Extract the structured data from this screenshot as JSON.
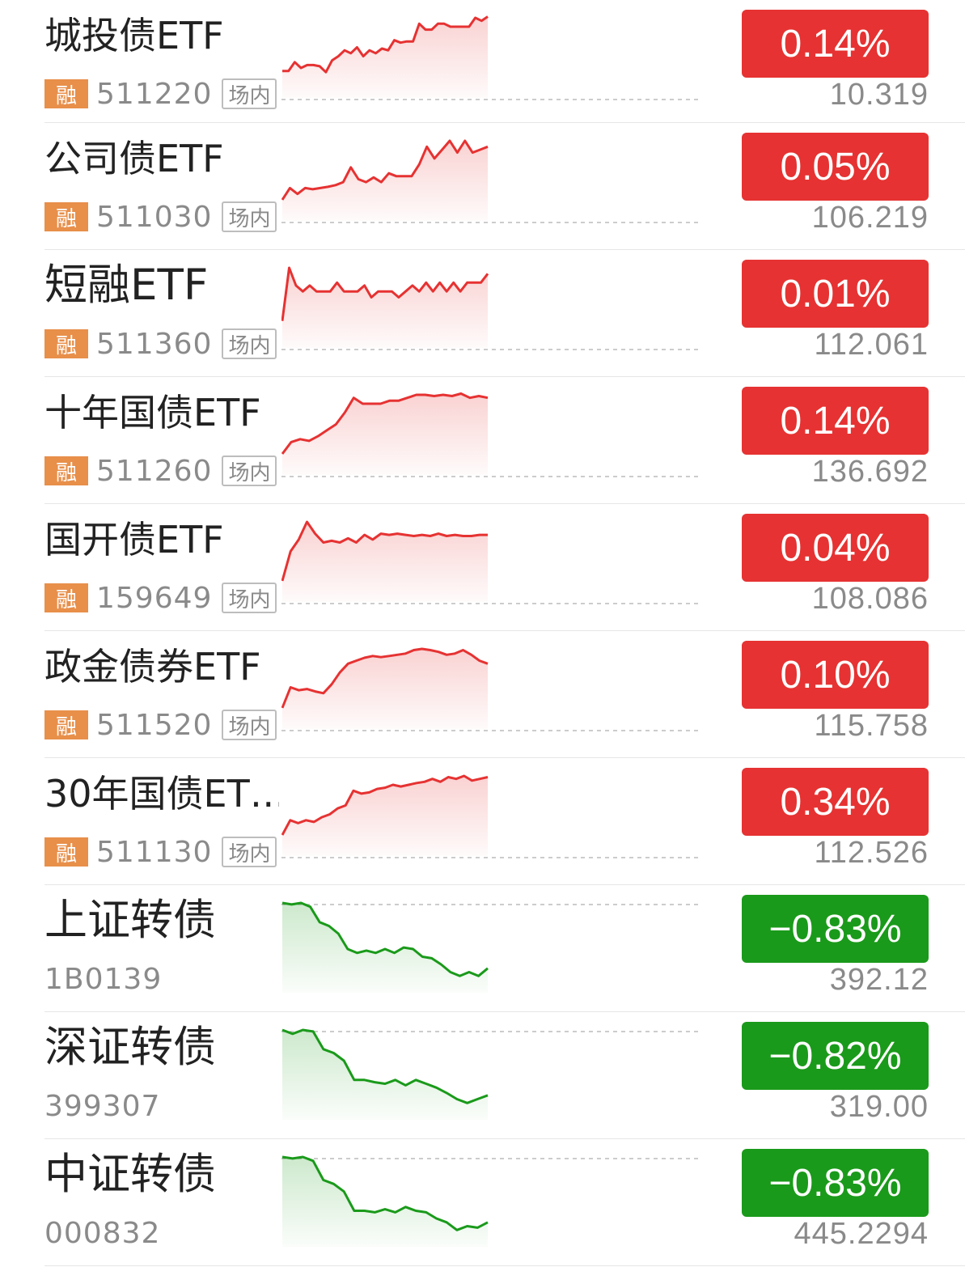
{
  "colors": {
    "up": "#e63232",
    "down": "#1a9a1a",
    "rong_badge": "#e88f4a",
    "secondary_text": "#8a8a8a"
  },
  "rows": [
    {
      "name": "城投债ETF",
      "tag": "融",
      "code": "511220",
      "market": "场内",
      "change": "0.14%",
      "price": "10.319",
      "trend": "up",
      "spark": [
        0.1,
        0.1,
        0.25,
        0.15,
        0.2,
        0.2,
        0.18,
        0.08,
        0.28,
        0.35,
        0.45,
        0.4,
        0.5,
        0.35,
        0.45,
        0.4,
        0.48,
        0.45,
        0.62,
        0.58,
        0.6,
        0.6,
        0.9,
        0.8,
        0.8,
        0.9,
        0.9,
        0.85,
        0.85,
        0.85,
        0.85,
        1.0,
        0.95,
        1.02
      ]
    },
    {
      "name": "公司债ETF",
      "tag": "融",
      "code": "511030",
      "market": "场内",
      "change": "0.05%",
      "price": "106.219",
      "trend": "up",
      "spark": [
        0.0,
        0.2,
        0.1,
        0.2,
        0.18,
        0.2,
        0.22,
        0.25,
        0.3,
        0.55,
        0.35,
        0.3,
        0.38,
        0.3,
        0.45,
        0.4,
        0.4,
        0.4,
        0.6,
        0.9,
        0.7,
        0.85,
        1.0,
        0.8,
        1.0,
        0.8,
        0.85,
        0.9
      ]
    },
    {
      "name": "短融ETF",
      "tag": "融",
      "code": "511360",
      "market": "场内",
      "change": "0.01%",
      "price": "112.061",
      "trend": "up",
      "spark": [
        0.1,
        1.0,
        0.7,
        0.6,
        0.7,
        0.6,
        0.6,
        0.6,
        0.75,
        0.6,
        0.6,
        0.6,
        0.7,
        0.5,
        0.6,
        0.6,
        0.6,
        0.5,
        0.6,
        0.7,
        0.6,
        0.75,
        0.6,
        0.75,
        0.6,
        0.75,
        0.6,
        0.75,
        0.75,
        0.75,
        0.9
      ]
    },
    {
      "name": "十年国债ETF",
      "tag": "融",
      "code": "511260",
      "market": "场内",
      "change": "0.14%",
      "price": "136.692",
      "trend": "up",
      "spark": [
        0.0,
        0.2,
        0.25,
        0.22,
        0.3,
        0.4,
        0.5,
        0.7,
        0.95,
        0.85,
        0.85,
        0.85,
        0.9,
        0.9,
        0.95,
        1.0,
        1.0,
        0.98,
        1.0,
        0.98,
        1.02,
        0.95,
        0.98,
        0.95
      ]
    },
    {
      "name": "国开债ETF",
      "tag": "融",
      "code": "159649",
      "market": "场内",
      "change": "0.04%",
      "price": "108.086",
      "trend": "up",
      "spark": [
        0.0,
        0.5,
        0.7,
        1.0,
        0.8,
        0.65,
        0.68,
        0.65,
        0.72,
        0.65,
        0.78,
        0.7,
        0.8,
        0.78,
        0.8,
        0.78,
        0.76,
        0.78,
        0.76,
        0.8,
        0.76,
        0.78,
        0.76,
        0.76,
        0.78,
        0.78
      ]
    },
    {
      "name": "政金债券ETF",
      "tag": "融",
      "code": "511520",
      "market": "场内",
      "change": "0.10%",
      "price": "115.758",
      "trend": "up",
      "spark": [
        0.0,
        0.35,
        0.3,
        0.32,
        0.28,
        0.25,
        0.4,
        0.6,
        0.75,
        0.8,
        0.85,
        0.88,
        0.86,
        0.88,
        0.9,
        0.92,
        0.98,
        1.0,
        0.98,
        0.95,
        0.9,
        0.92,
        0.98,
        0.9,
        0.8,
        0.75
      ]
    },
    {
      "name": "30年国债ET…",
      "tag": "融",
      "code": "511130",
      "market": "场内",
      "change": "0.34%",
      "price": "112.526",
      "trend": "up",
      "spark": [
        0.0,
        0.25,
        0.2,
        0.25,
        0.22,
        0.3,
        0.35,
        0.45,
        0.5,
        0.75,
        0.7,
        0.72,
        0.78,
        0.8,
        0.85,
        0.82,
        0.85,
        0.88,
        0.9,
        0.95,
        0.9,
        0.98,
        0.95,
        1.0,
        0.92,
        0.95,
        0.98
      ]
    },
    {
      "name": "上证转债",
      "tag": "",
      "code": "1B0139",
      "market": "",
      "change": "−0.83%",
      "price": "392.12",
      "trend": "down",
      "spark": [
        1.0,
        0.98,
        1.0,
        0.95,
        0.75,
        0.7,
        0.6,
        0.4,
        0.35,
        0.38,
        0.35,
        0.4,
        0.35,
        0.42,
        0.4,
        0.3,
        0.28,
        0.2,
        0.1,
        0.05,
        0.1,
        0.05,
        0.15
      ]
    },
    {
      "name": "深证转债",
      "tag": "",
      "code": "399307",
      "market": "",
      "change": "−0.82%",
      "price": "319.00",
      "trend": "down",
      "spark": [
        1.0,
        0.95,
        1.0,
        0.98,
        0.75,
        0.7,
        0.6,
        0.35,
        0.35,
        0.32,
        0.3,
        0.35,
        0.28,
        0.35,
        0.3,
        0.25,
        0.18,
        0.1,
        0.05,
        0.1,
        0.15
      ]
    },
    {
      "name": "中证转债",
      "tag": "",
      "code": "000832",
      "market": "",
      "change": "−0.83%",
      "price": "445.2294",
      "trend": "down",
      "spark": [
        1.0,
        0.98,
        1.0,
        0.95,
        0.7,
        0.65,
        0.55,
        0.3,
        0.3,
        0.28,
        0.32,
        0.28,
        0.35,
        0.3,
        0.28,
        0.2,
        0.15,
        0.05,
        0.1,
        0.08,
        0.15
      ]
    }
  ]
}
